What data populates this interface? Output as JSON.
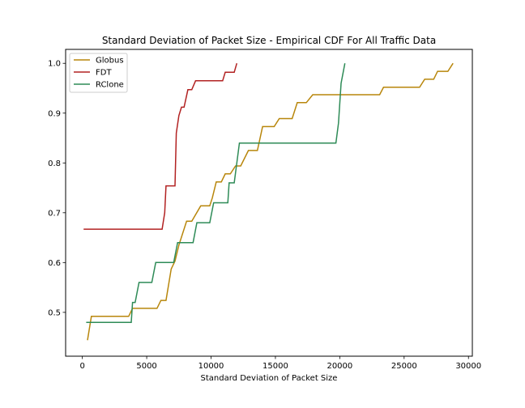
{
  "chart_data": {
    "type": "line",
    "title": "Standard Deviation of Packet Size - Empirical CDF For All Traffic Data",
    "xlabel": "Standard Deviation of Packet Size",
    "ylabel": "",
    "xlim": [
      -1300,
      30300
    ],
    "ylim": [
      0.412,
      1.028
    ],
    "xticks": [
      0,
      5000,
      10000,
      15000,
      20000,
      25000,
      30000
    ],
    "xtick_labels": [
      "0",
      "5000",
      "10000",
      "15000",
      "20000",
      "25000",
      "30000"
    ],
    "yticks": [
      0.5,
      0.6,
      0.7,
      0.8,
      0.9,
      1.0
    ],
    "ytick_labels": [
      "0.5",
      "0.6",
      "0.7",
      "0.8",
      "0.9",
      "1.0"
    ],
    "grid": false,
    "legend_position": "top-left",
    "series": [
      {
        "name": "Globus",
        "color": "#b8860b",
        "points": [
          [
            400,
            0.444
          ],
          [
            700,
            0.492
          ],
          [
            3600,
            0.492
          ],
          [
            3900,
            0.508
          ],
          [
            5800,
            0.508
          ],
          [
            6100,
            0.524
          ],
          [
            6500,
            0.524
          ],
          [
            6900,
            0.587
          ],
          [
            7200,
            0.603
          ],
          [
            7500,
            0.635
          ],
          [
            8100,
            0.683
          ],
          [
            8500,
            0.683
          ],
          [
            9200,
            0.714
          ],
          [
            9900,
            0.714
          ],
          [
            10100,
            0.73
          ],
          [
            10400,
            0.762
          ],
          [
            10800,
            0.762
          ],
          [
            11100,
            0.778
          ],
          [
            11500,
            0.778
          ],
          [
            11900,
            0.794
          ],
          [
            12300,
            0.794
          ],
          [
            12900,
            0.825
          ],
          [
            13600,
            0.825
          ],
          [
            14000,
            0.873
          ],
          [
            14900,
            0.873
          ],
          [
            15300,
            0.889
          ],
          [
            16300,
            0.889
          ],
          [
            16700,
            0.921
          ],
          [
            17400,
            0.921
          ],
          [
            17900,
            0.937
          ],
          [
            23100,
            0.937
          ],
          [
            23400,
            0.952
          ],
          [
            26200,
            0.952
          ],
          [
            26600,
            0.968
          ],
          [
            27300,
            0.968
          ],
          [
            27600,
            0.984
          ],
          [
            28400,
            0.984
          ],
          [
            28800,
            1.0
          ]
        ]
      },
      {
        "name": "FDT",
        "color": "#b22222",
        "points": [
          [
            100,
            0.667
          ],
          [
            6200,
            0.667
          ],
          [
            6400,
            0.7
          ],
          [
            6500,
            0.754
          ],
          [
            7200,
            0.754
          ],
          [
            7300,
            0.86
          ],
          [
            7500,
            0.895
          ],
          [
            7700,
            0.912
          ],
          [
            7900,
            0.912
          ],
          [
            8200,
            0.947
          ],
          [
            8500,
            0.947
          ],
          [
            8800,
            0.965
          ],
          [
            10900,
            0.965
          ],
          [
            11100,
            0.982
          ],
          [
            11800,
            0.982
          ],
          [
            12000,
            1.0
          ]
        ]
      },
      {
        "name": "RClone",
        "color": "#2e8b57",
        "points": [
          [
            300,
            0.48
          ],
          [
            3800,
            0.48
          ],
          [
            3900,
            0.52
          ],
          [
            4100,
            0.52
          ],
          [
            4400,
            0.56
          ],
          [
            5400,
            0.56
          ],
          [
            5700,
            0.6
          ],
          [
            7100,
            0.6
          ],
          [
            7400,
            0.64
          ],
          [
            8600,
            0.64
          ],
          [
            8900,
            0.68
          ],
          [
            9900,
            0.68
          ],
          [
            10200,
            0.72
          ],
          [
            11300,
            0.72
          ],
          [
            11400,
            0.76
          ],
          [
            11800,
            0.76
          ],
          [
            12000,
            0.8
          ],
          [
            12200,
            0.84
          ],
          [
            19700,
            0.84
          ],
          [
            19900,
            0.88
          ],
          [
            20100,
            0.96
          ],
          [
            20400,
            1.0
          ]
        ]
      }
    ]
  }
}
